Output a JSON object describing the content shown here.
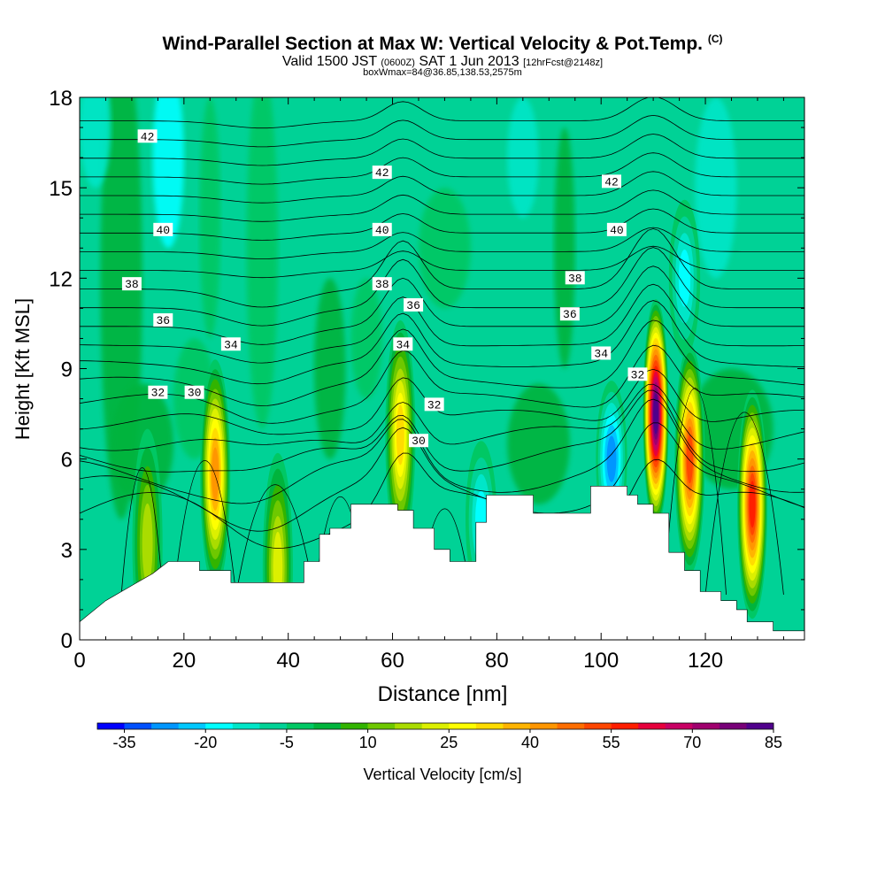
{
  "header": {
    "title": "Wind-Parallel Section at Max W: Vertical Velocity & Pot.Temp.",
    "title_mark": "(C)",
    "valid_prefix": "Valid 1500 JST",
    "valid_utc": "(0600Z)",
    "valid_date": "SAT 1 Jun 2013",
    "forecast": "[12hrFcst@2148z]",
    "box_info": "boxWmax=84@36.85,138.53,2575m"
  },
  "chart_data": {
    "type": "heatmap",
    "xlabel": "Distance [nm]",
    "ylabel": "Height [Kft MSL]",
    "xlim": [
      0,
      139
    ],
    "ylim": [
      0,
      18
    ],
    "x_ticks": [
      "0",
      "20",
      "40",
      "60",
      "80",
      "100",
      "120"
    ],
    "y_ticks": [
      "0",
      "3",
      "6",
      "9",
      "12",
      "15",
      "18"
    ],
    "terrain_kft": [
      [
        0,
        0.6
      ],
      [
        5,
        1.3
      ],
      [
        8,
        1.6
      ],
      [
        11,
        1.9
      ],
      [
        14,
        2.2
      ],
      [
        17,
        2.6
      ],
      [
        23,
        2.6
      ],
      [
        23,
        2.3
      ],
      [
        29,
        2.3
      ],
      [
        29,
        1.9
      ],
      [
        43,
        1.9
      ],
      [
        43,
        2.6
      ],
      [
        46,
        2.6
      ],
      [
        46,
        3.5
      ],
      [
        48,
        3.5
      ],
      [
        48,
        3.7
      ],
      [
        52,
        3.7
      ],
      [
        52,
        4.5
      ],
      [
        61,
        4.5
      ],
      [
        61,
        4.3
      ],
      [
        64,
        4.3
      ],
      [
        64,
        3.7
      ],
      [
        68,
        3.7
      ],
      [
        68,
        3.0
      ],
      [
        71,
        3.0
      ],
      [
        71,
        2.6
      ],
      [
        76,
        2.6
      ],
      [
        76,
        3.9
      ],
      [
        78,
        3.9
      ],
      [
        78,
        4.8
      ],
      [
        87,
        4.8
      ],
      [
        87,
        4.2
      ],
      [
        98,
        4.2
      ],
      [
        98,
        5.1
      ],
      [
        105,
        5.1
      ],
      [
        105,
        4.8
      ],
      [
        107,
        4.8
      ],
      [
        107,
        4.5
      ],
      [
        110,
        4.5
      ],
      [
        110,
        4.2
      ],
      [
        113,
        4.2
      ],
      [
        113,
        2.9
      ],
      [
        116,
        2.9
      ],
      [
        116,
        2.3
      ],
      [
        119,
        2.3
      ],
      [
        119,
        1.6
      ],
      [
        123,
        1.6
      ],
      [
        123,
        1.3
      ],
      [
        126,
        1.3
      ],
      [
        126,
        1.0
      ],
      [
        128,
        1.0
      ],
      [
        128,
        0.6
      ],
      [
        133,
        0.6
      ],
      [
        133,
        0.3
      ],
      [
        139,
        0.3
      ]
    ],
    "colorbar": {
      "label": "Vertical Velocity [cm/s]",
      "tick_labels": [
        "-35",
        "-20",
        "-5",
        "10",
        "25",
        "40",
        "55",
        "70",
        "85"
      ],
      "colors": [
        "#0000ff",
        "#0050ff",
        "#0096ff",
        "#00c8ff",
        "#00ffff",
        "#00e6c8",
        "#00d296",
        "#00c864",
        "#00b43c",
        "#32b400",
        "#6ec800",
        "#aadc00",
        "#dcf000",
        "#ffff00",
        "#ffdc00",
        "#ffb400",
        "#ff9600",
        "#ff6e00",
        "#ff4600",
        "#ff1e00",
        "#e6003c",
        "#c80064",
        "#a0006e",
        "#780078",
        "#50008c"
      ]
    },
    "updrafts": [
      {
        "x": 26,
        "y": 5.5,
        "peak_cms": 45
      },
      {
        "x": 38,
        "y": 2.4,
        "peak_cms": 25
      },
      {
        "x": 13,
        "y": 3.2,
        "peak_cms": 20
      },
      {
        "x": 61.5,
        "y": 6.8,
        "peak_cms": 35
      },
      {
        "x": 110.5,
        "y": 7.5,
        "peak_cms": 84
      },
      {
        "x": 117,
        "y": 6.0,
        "peak_cms": 55
      },
      {
        "x": 129,
        "y": 4.5,
        "peak_cms": 60
      }
    ],
    "downdrafts": [
      {
        "x": 77,
        "y": 4.0,
        "min_cms": -15
      },
      {
        "x": 102,
        "y": 6.0,
        "min_cms": -25
      },
      {
        "x": 116,
        "y": 12.0,
        "min_cms": -15
      }
    ],
    "isentrope_labels": [
      {
        "text": "42",
        "x": 13,
        "y": 16.7
      },
      {
        "text": "42",
        "x": 58,
        "y": 15.5
      },
      {
        "text": "42",
        "x": 102,
        "y": 15.2
      },
      {
        "text": "40",
        "x": 16,
        "y": 13.6
      },
      {
        "text": "40",
        "x": 58,
        "y": 13.6
      },
      {
        "text": "40",
        "x": 103,
        "y": 13.6
      },
      {
        "text": "38",
        "x": 10,
        "y": 11.8
      },
      {
        "text": "38",
        "x": 58,
        "y": 11.8
      },
      {
        "text": "38",
        "x": 95,
        "y": 12.0
      },
      {
        "text": "36",
        "x": 16,
        "y": 10.6
      },
      {
        "text": "36",
        "x": 64,
        "y": 11.1
      },
      {
        "text": "36",
        "x": 94,
        "y": 10.8
      },
      {
        "text": "34",
        "x": 29,
        "y": 9.8
      },
      {
        "text": "34",
        "x": 62,
        "y": 9.8
      },
      {
        "text": "34",
        "x": 100,
        "y": 9.5
      },
      {
        "text": "32",
        "x": 15,
        "y": 8.2
      },
      {
        "text": "32",
        "x": 68,
        "y": 7.8
      },
      {
        "text": "32",
        "x": 107,
        "y": 8.8
      },
      {
        "text": "30",
        "x": 22,
        "y": 8.2
      },
      {
        "text": "30",
        "x": 65,
        "y": 6.6
      }
    ]
  }
}
